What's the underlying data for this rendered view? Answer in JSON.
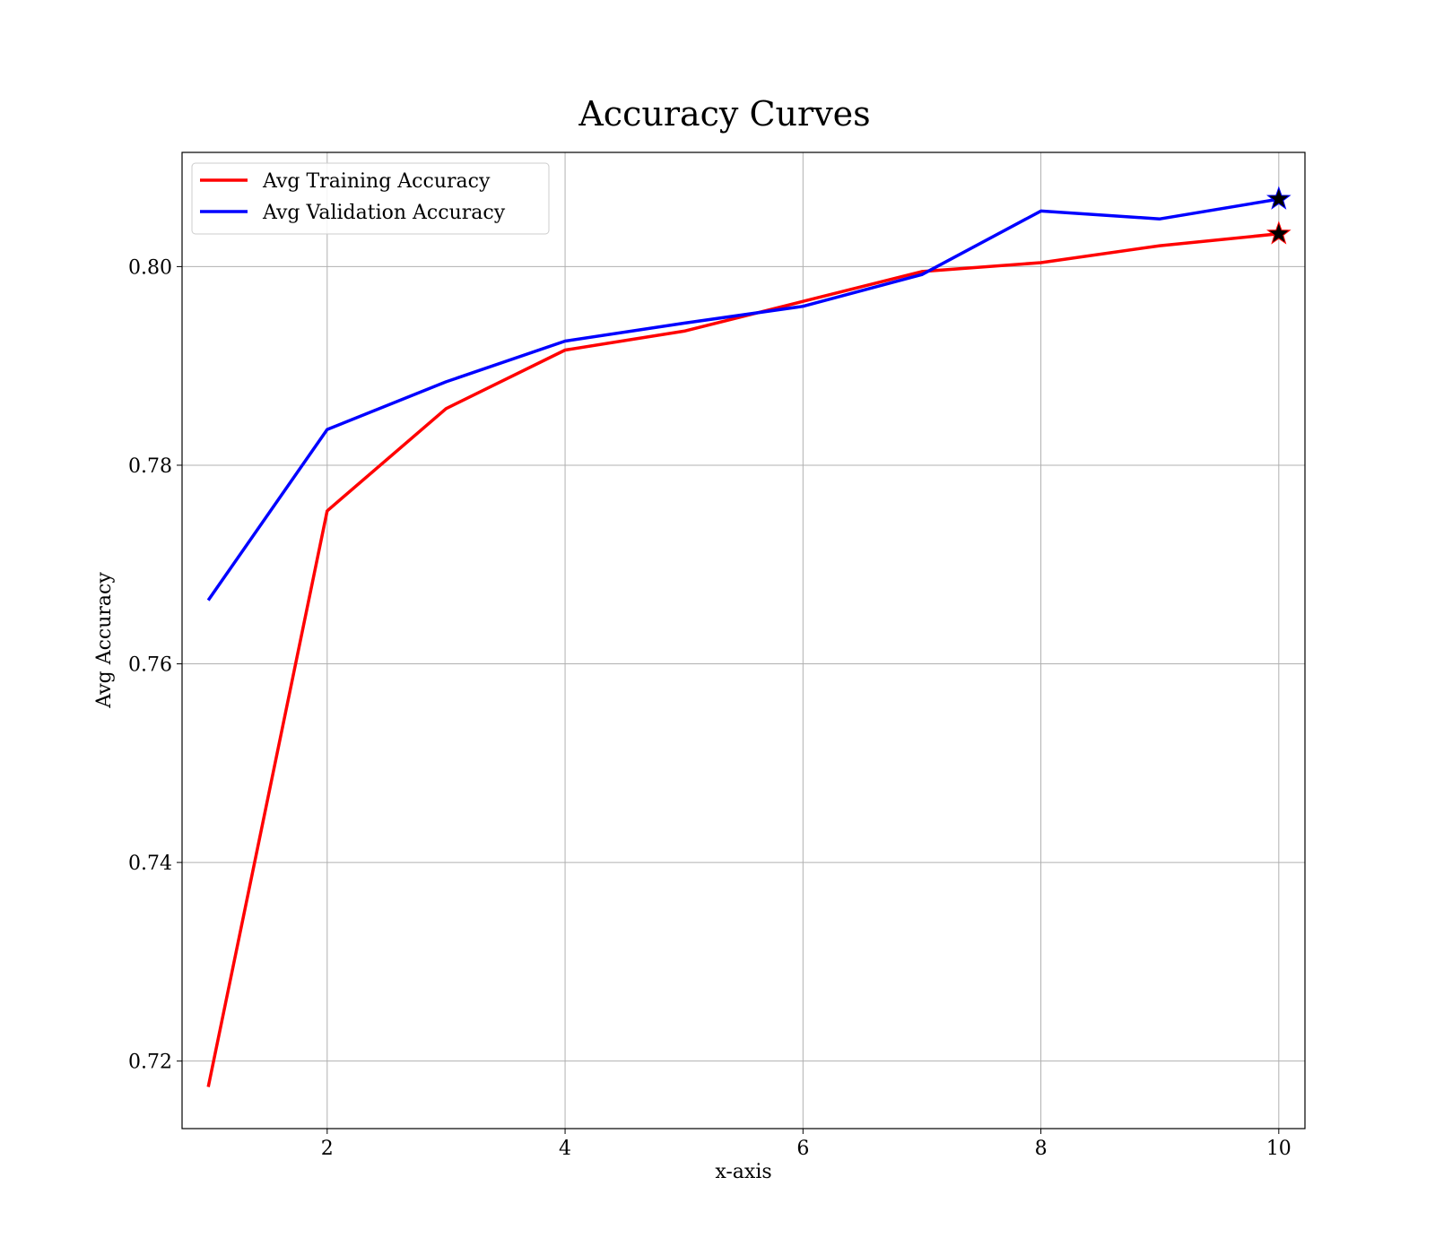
{
  "chart_data": {
    "type": "line",
    "title": "Accuracy Curves",
    "xlabel": "x-axis",
    "ylabel": "Avg Accuracy",
    "x": [
      1,
      2,
      3,
      4,
      5,
      6,
      7,
      8,
      9,
      10
    ],
    "xlim": [
      0.78,
      10.22
    ],
    "ylim": [
      0.7132,
      0.8115
    ],
    "xticks": [
      2,
      4,
      6,
      8,
      10
    ],
    "xtick_labels": [
      "2",
      "4",
      "6",
      "8",
      "10"
    ],
    "yticks": [
      0.72,
      0.74,
      0.76,
      0.78,
      0.8
    ],
    "ytick_labels": [
      "0.72",
      "0.74",
      "0.76",
      "0.78",
      "0.80"
    ],
    "grid": true,
    "legend_position": "top-left",
    "series": [
      {
        "name": "Avg Training Accuracy",
        "color": "#ff0000",
        "values": [
          0.7174,
          0.7754,
          0.7857,
          0.7916,
          0.7935,
          0.7965,
          0.7995,
          0.8004,
          0.8021,
          0.8033
        ]
      },
      {
        "name": "Avg Validation Accuracy",
        "color": "#0000ff",
        "values": [
          0.7664,
          0.7836,
          0.7884,
          0.7925,
          0.7943,
          0.796,
          0.7992,
          0.8056,
          0.8048,
          0.8068
        ]
      }
    ],
    "markers": [
      {
        "series": "Avg Training Accuracy",
        "x": 10,
        "y": 0.8033,
        "shape": "star"
      },
      {
        "series": "Avg Validation Accuracy",
        "x": 10,
        "y": 0.8068,
        "shape": "star"
      }
    ]
  }
}
